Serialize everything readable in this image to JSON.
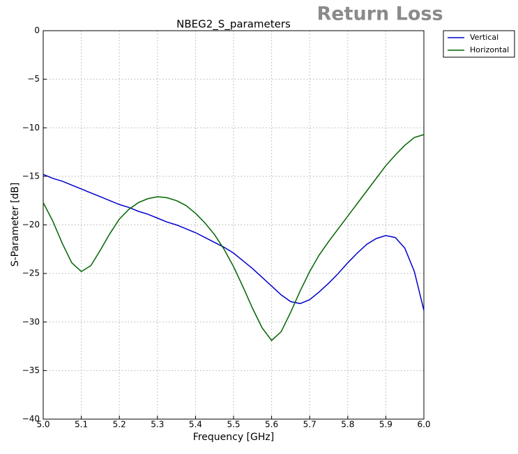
{
  "chart_data": {
    "type": "line",
    "title": "NBEG2_S_parameters",
    "annotation": "Return Loss",
    "xlabel": "Frequency [GHz]",
    "ylabel": "S-Parameter [dB]",
    "x": [
      5.0,
      5.025,
      5.05,
      5.075,
      5.1,
      5.125,
      5.15,
      5.175,
      5.2,
      5.225,
      5.25,
      5.275,
      5.3,
      5.325,
      5.35,
      5.375,
      5.4,
      5.425,
      5.45,
      5.475,
      5.5,
      5.525,
      5.55,
      5.575,
      5.6,
      5.625,
      5.65,
      5.675,
      5.7,
      5.725,
      5.75,
      5.775,
      5.8,
      5.825,
      5.85,
      5.875,
      5.9,
      5.925,
      5.95,
      5.975,
      6.0
    ],
    "series": [
      {
        "name": "Vertical",
        "color": "#0000cc",
        "values": [
          -14.8,
          -15.2,
          -15.5,
          -15.9,
          -16.3,
          -16.7,
          -17.1,
          -17.5,
          -17.9,
          -18.2,
          -18.6,
          -18.9,
          -19.3,
          -19.7,
          -20.0,
          -20.4,
          -20.8,
          -21.3,
          -21.8,
          -22.3,
          -22.9,
          -23.7,
          -24.5,
          -25.4,
          -26.3,
          -27.2,
          -27.9,
          -28.1,
          -27.7,
          -26.9,
          -26.0,
          -25.0,
          -23.9,
          -22.9,
          -22.0,
          -21.4,
          -21.1,
          -21.3,
          -22.4,
          -24.8,
          -28.8
        ]
      },
      {
        "name": "Horizontal",
        "color": "#006400",
        "values": [
          -17.7,
          -19.6,
          -21.9,
          -23.9,
          -24.8,
          -24.2,
          -22.6,
          -20.9,
          -19.4,
          -18.4,
          -17.7,
          -17.3,
          -17.1,
          -17.2,
          -17.5,
          -18.0,
          -18.8,
          -19.8,
          -21.0,
          -22.5,
          -24.3,
          -26.4,
          -28.6,
          -30.6,
          -31.9,
          -31.0,
          -29.0,
          -26.8,
          -24.8,
          -23.1,
          -21.7,
          -20.4,
          -19.1,
          -17.8,
          -16.5,
          -15.2,
          -13.9,
          -12.8,
          -11.8,
          -11.0,
          -10.7
        ]
      }
    ],
    "xlim": [
      5.0,
      6.0
    ],
    "xticks": [
      {
        "value": 5.0,
        "label": "5.0"
      },
      5.1,
      5.2,
      5.3,
      5.4,
      5.5,
      5.6,
      5.7,
      5.8,
      5.9,
      {
        "value": 6.0,
        "label": "6.0"
      }
    ],
    "ylim": [
      -40,
      0
    ],
    "yticks": [
      0,
      {
        "value": -5,
        "label": "−5"
      },
      {
        "value": -10,
        "label": "−10"
      },
      {
        "value": -15,
        "label": "−15"
      },
      {
        "value": -20,
        "label": "−20"
      },
      {
        "value": -25,
        "label": "−25"
      },
      {
        "value": -30,
        "label": "−30"
      },
      {
        "value": -35,
        "label": "−35"
      },
      {
        "value": -40,
        "label": "−40"
      }
    ],
    "grid": true,
    "legend": "outside"
  }
}
